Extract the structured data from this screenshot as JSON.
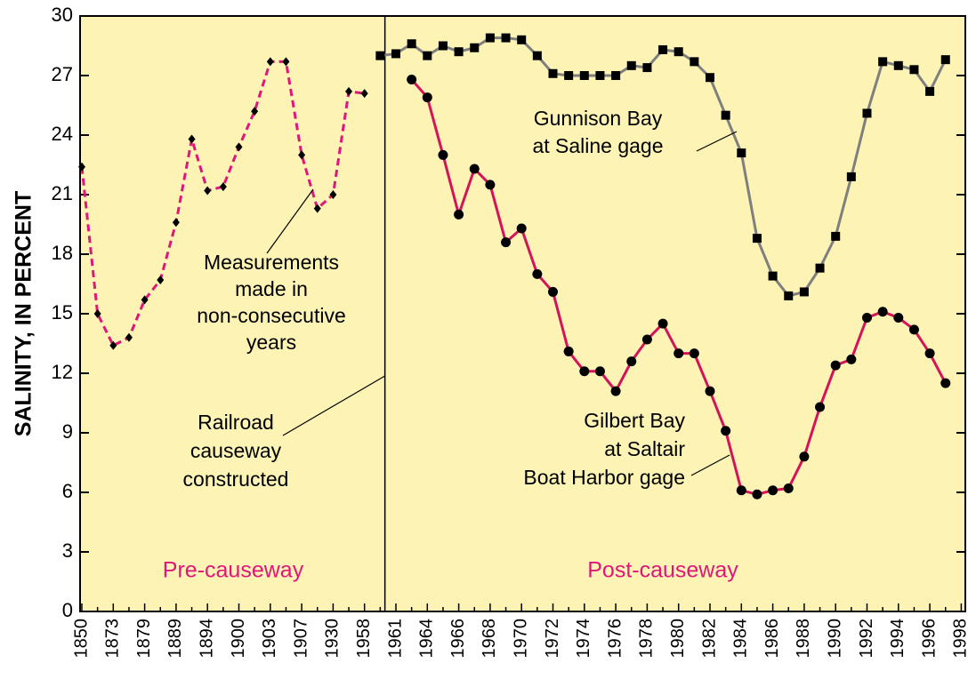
{
  "chart_data": {
    "type": "line",
    "ylabel": "SALINITY, IN PERCENT",
    "categories": [
      "1850",
      null,
      "1873",
      null,
      "1879",
      null,
      "1889",
      null,
      "1894",
      null,
      "1900",
      null,
      "1903",
      null,
      "1907",
      null,
      "1930",
      null,
      "1958",
      null,
      "1961",
      null,
      "1964",
      null,
      "1966",
      null,
      "1968",
      null,
      "1970",
      null,
      "1972",
      null,
      "1974",
      null,
      "1976",
      null,
      "1978",
      null,
      "1980",
      null,
      "1982",
      null,
      "1984",
      null,
      "1986",
      null,
      "1988",
      null,
      "1990",
      null,
      "1992",
      null,
      "1994",
      null,
      "1996",
      null,
      "1998"
    ],
    "ylim": [
      0,
      30
    ],
    "yticks": [
      0,
      3,
      6,
      9,
      12,
      15,
      18,
      21,
      24,
      27,
      30
    ],
    "series": [
      {
        "color": "#e0177a",
        "dashed": true,
        "marker": "diamond",
        "values": [
          22.4,
          15.0,
          13.4,
          13.8,
          15.7,
          16.7,
          19.6,
          23.8,
          21.2,
          21.4,
          23.4,
          25.2,
          27.7,
          27.7,
          23.0,
          20.3,
          21.0,
          26.2,
          26.1,
          null,
          null,
          null,
          null,
          null,
          null,
          null,
          null,
          null,
          null,
          null,
          null,
          null,
          null,
          null,
          null,
          null,
          null,
          null,
          null,
          null,
          null,
          null,
          null,
          null,
          null,
          null,
          null,
          null,
          null,
          null,
          null,
          null,
          null,
          null,
          null,
          null,
          null
        ]
      },
      {
        "color": "#7f7f7f",
        "dashed": false,
        "marker": "square",
        "values": [
          null,
          null,
          null,
          null,
          null,
          null,
          null,
          null,
          null,
          null,
          null,
          null,
          null,
          null,
          null,
          null,
          null,
          null,
          null,
          28.0,
          28.1,
          28.6,
          28.0,
          28.5,
          28.2,
          28.4,
          28.9,
          28.9,
          28.8,
          28.0,
          27.1,
          27.0,
          27.0,
          27.0,
          27.0,
          27.5,
          27.4,
          28.3,
          28.2,
          27.7,
          26.9,
          25.0,
          23.1,
          18.8,
          16.9,
          15.9,
          16.1,
          17.3,
          18.9,
          21.9,
          25.1,
          27.7,
          27.5,
          27.3,
          26.2,
          27.8,
          null
        ]
      },
      {
        "color": "#d4145a",
        "dashed": false,
        "marker": "circle",
        "values": [
          null,
          null,
          null,
          null,
          null,
          null,
          null,
          null,
          null,
          null,
          null,
          null,
          null,
          null,
          null,
          null,
          null,
          null,
          null,
          null,
          null,
          26.8,
          25.9,
          23.0,
          20.0,
          22.3,
          21.5,
          18.6,
          19.3,
          17.0,
          16.1,
          13.1,
          12.1,
          12.1,
          11.1,
          12.6,
          13.7,
          14.5,
          13.0,
          13.0,
          11.1,
          9.1,
          6.1,
          5.9,
          6.1,
          6.2,
          7.8,
          10.3,
          12.4,
          12.7,
          14.8,
          15.1,
          14.8,
          14.2,
          13.0,
          11.5,
          null
        ]
      }
    ],
    "annotations": [
      [
        "Measurements",
        "made in",
        "non-consecutive",
        "years"
      ],
      [
        "Railroad",
        "causeway",
        "constructed"
      ],
      [
        "Gunnison Bay",
        "at Saline gage"
      ],
      [
        "Gilbert Bay",
        "at Saltair",
        "Boat Harbor gage"
      ]
    ],
    "regions": [
      "Pre-causeway",
      "Post-causeway"
    ],
    "background": "#fcf3b4"
  }
}
